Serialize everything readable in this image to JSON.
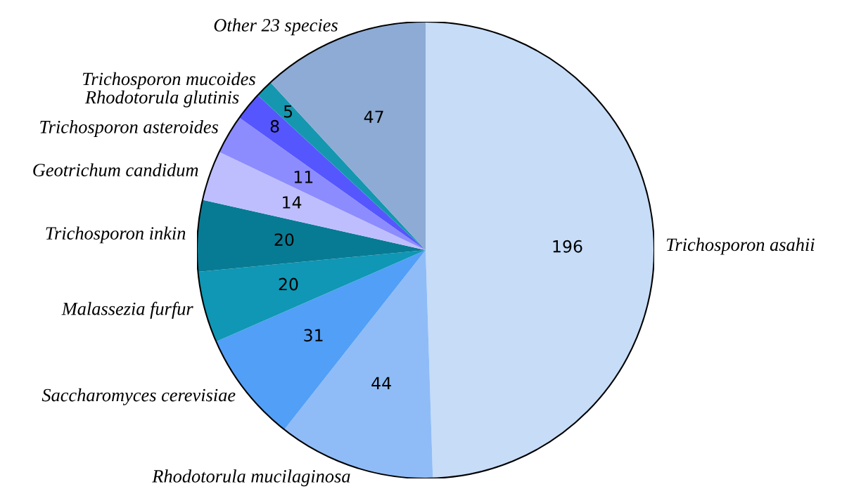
{
  "chart_data": {
    "type": "pie",
    "data_labels": true,
    "categories": [
      "Trichosporon asahii",
      "Rhodotorula mucilaginosa",
      "Saccharomyces cerevisiae",
      "Malassezia furfur",
      "Trichosporon inkin",
      "Geotrichum candidum",
      "Trichosporon asteroides",
      "Rhodotorula glutinis",
      "Trichosporon mucoides",
      "Other 23 species"
    ],
    "values": [
      196,
      44,
      31,
      20,
      20,
      14,
      11,
      8,
      5,
      47
    ],
    "colors": [
      "#c6dcf7",
      "#8fbcf7",
      "#529ff7",
      "#0f97b5",
      "#087b94",
      "#bebefe",
      "#8c8cfe",
      "#5656fe",
      "#1597b0",
      "#8dabd4"
    ]
  }
}
